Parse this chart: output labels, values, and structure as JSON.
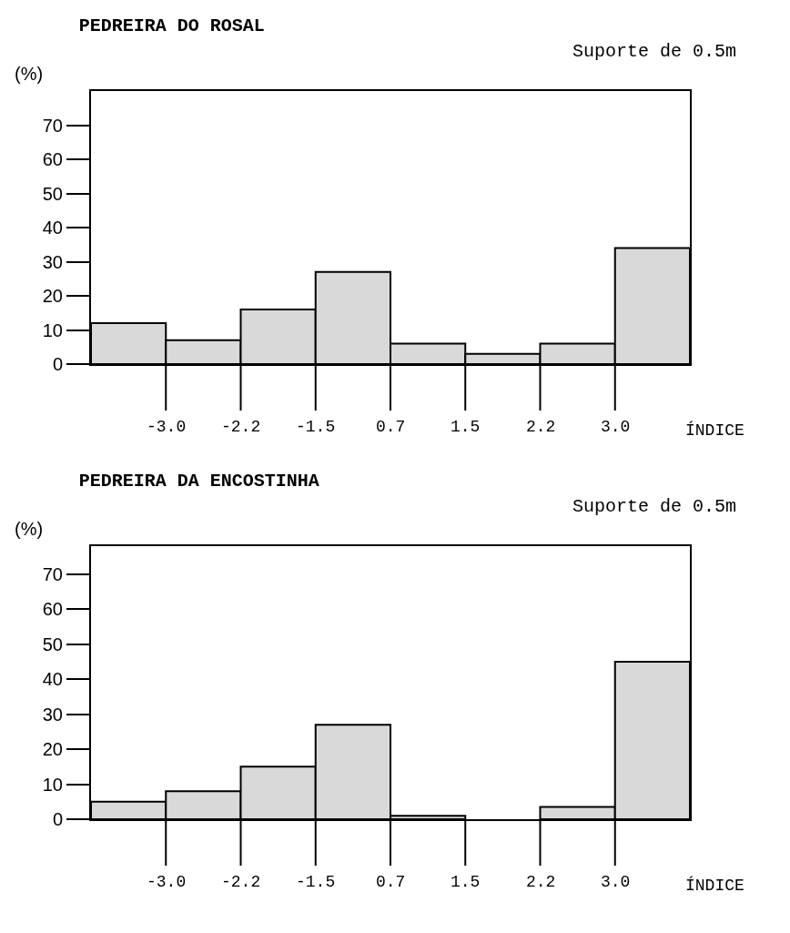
{
  "chart_data": [
    {
      "type": "bar",
      "title": "PEDREIRA DO ROSAL",
      "subtitle": "Suporte de 0.5m",
      "xlabel": "ÍNDICE",
      "ylabel": "(%)",
      "categories": [
        null,
        null,
        null,
        null,
        null,
        null,
        null,
        null
      ],
      "values": [
        12,
        7,
        16,
        27,
        6,
        3,
        6,
        34
      ],
      "color": "#d9d9d9",
      "ylim": [
        0,
        80
      ],
      "yticks": [
        0,
        10,
        20,
        30,
        40,
        50,
        60,
        70
      ],
      "grid": false,
      "annotations": [
        "-3.0",
        "-2.2",
        "-1.5",
        "0.7",
        "1.5",
        "2.2",
        "3.0"
      ]
    },
    {
      "type": "bar",
      "title": "PEDREIRA DA ENCOSTINHA",
      "subtitle": "Suporte de 0.5m",
      "xlabel": "ÍNDICE",
      "ylabel": "(%)",
      "categories": [
        null,
        null,
        null,
        null,
        null,
        null,
        null,
        null
      ],
      "values": [
        5,
        8,
        15,
        27,
        1,
        0,
        3.5,
        45
      ],
      "color": "#d9d9d9",
      "ylim": [
        0,
        78
      ],
      "yticks": [
        0,
        10,
        20,
        30,
        40,
        50,
        60,
        70
      ],
      "grid": false,
      "annotations": [
        "-3.0",
        "-2.2",
        "-1.5",
        "0.7",
        "1.5",
        "2.2",
        "3.0"
      ]
    }
  ]
}
